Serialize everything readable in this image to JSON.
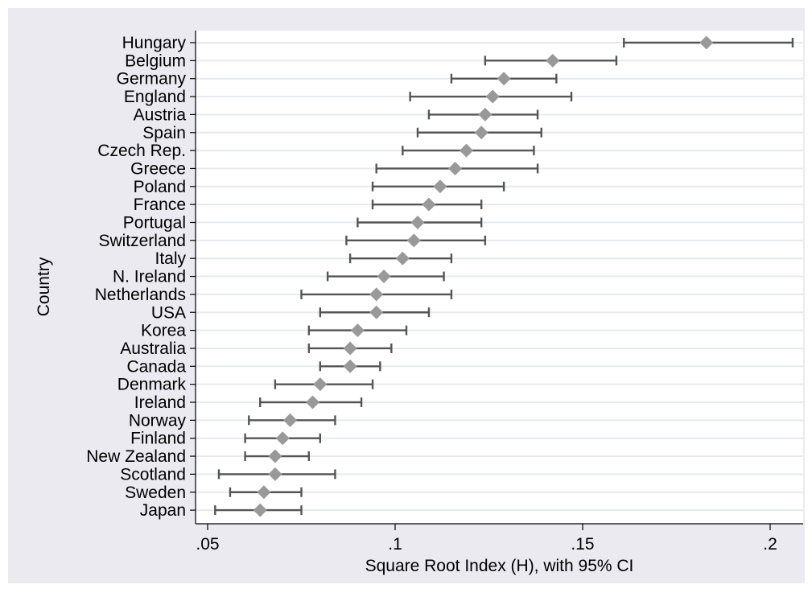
{
  "chart_data": {
    "type": "scatter",
    "subtype": "dot-plot-with-95-ci",
    "xlabel": "Square Root Index (H), with 95% CI",
    "ylabel": "Country",
    "xlim": [
      0.05,
      0.21
    ],
    "xticks": [
      0.05,
      0.1,
      0.15,
      0.2
    ],
    "xtick_labels": [
      ".05",
      ".1",
      ".15",
      ".2"
    ],
    "grid": "horizontal",
    "colors": {
      "outer_background": "#eaeaf0",
      "plot_background": "#ffffff",
      "gridline": "#e6e9ef",
      "marker": "#999999",
      "error_bar": "#555555"
    },
    "series": [
      {
        "country": "Hungary",
        "value": 0.183,
        "lower": 0.161,
        "upper": 0.206
      },
      {
        "country": "Belgium",
        "value": 0.142,
        "lower": 0.124,
        "upper": 0.159
      },
      {
        "country": "Germany",
        "value": 0.129,
        "lower": 0.115,
        "upper": 0.143
      },
      {
        "country": "England",
        "value": 0.126,
        "lower": 0.104,
        "upper": 0.147
      },
      {
        "country": "Austria",
        "value": 0.124,
        "lower": 0.109,
        "upper": 0.138
      },
      {
        "country": "Spain",
        "value": 0.123,
        "lower": 0.106,
        "upper": 0.139
      },
      {
        "country": "Czech Rep.",
        "value": 0.119,
        "lower": 0.102,
        "upper": 0.137
      },
      {
        "country": "Greece",
        "value": 0.116,
        "lower": 0.095,
        "upper": 0.138
      },
      {
        "country": "Poland",
        "value": 0.112,
        "lower": 0.094,
        "upper": 0.129
      },
      {
        "country": "France",
        "value": 0.109,
        "lower": 0.094,
        "upper": 0.123
      },
      {
        "country": "Portugal",
        "value": 0.106,
        "lower": 0.09,
        "upper": 0.123
      },
      {
        "country": "Switzerland",
        "value": 0.105,
        "lower": 0.087,
        "upper": 0.124
      },
      {
        "country": "Italy",
        "value": 0.102,
        "lower": 0.088,
        "upper": 0.115
      },
      {
        "country": "N. Ireland",
        "value": 0.097,
        "lower": 0.082,
        "upper": 0.113
      },
      {
        "country": "Netherlands",
        "value": 0.095,
        "lower": 0.075,
        "upper": 0.115
      },
      {
        "country": "USA",
        "value": 0.095,
        "lower": 0.08,
        "upper": 0.109
      },
      {
        "country": "Korea",
        "value": 0.09,
        "lower": 0.077,
        "upper": 0.103
      },
      {
        "country": "Australia",
        "value": 0.088,
        "lower": 0.077,
        "upper": 0.099
      },
      {
        "country": "Canada",
        "value": 0.088,
        "lower": 0.08,
        "upper": 0.096
      },
      {
        "country": "Denmark",
        "value": 0.08,
        "lower": 0.068,
        "upper": 0.094
      },
      {
        "country": "Ireland",
        "value": 0.078,
        "lower": 0.064,
        "upper": 0.091
      },
      {
        "country": "Norway",
        "value": 0.072,
        "lower": 0.061,
        "upper": 0.084
      },
      {
        "country": "Finland",
        "value": 0.07,
        "lower": 0.06,
        "upper": 0.08
      },
      {
        "country": "New Zealand",
        "value": 0.068,
        "lower": 0.06,
        "upper": 0.077
      },
      {
        "country": "Scotland",
        "value": 0.068,
        "lower": 0.053,
        "upper": 0.084
      },
      {
        "country": "Sweden",
        "value": 0.065,
        "lower": 0.056,
        "upper": 0.075
      },
      {
        "country": "Japan",
        "value": 0.064,
        "lower": 0.052,
        "upper": 0.075
      }
    ]
  }
}
